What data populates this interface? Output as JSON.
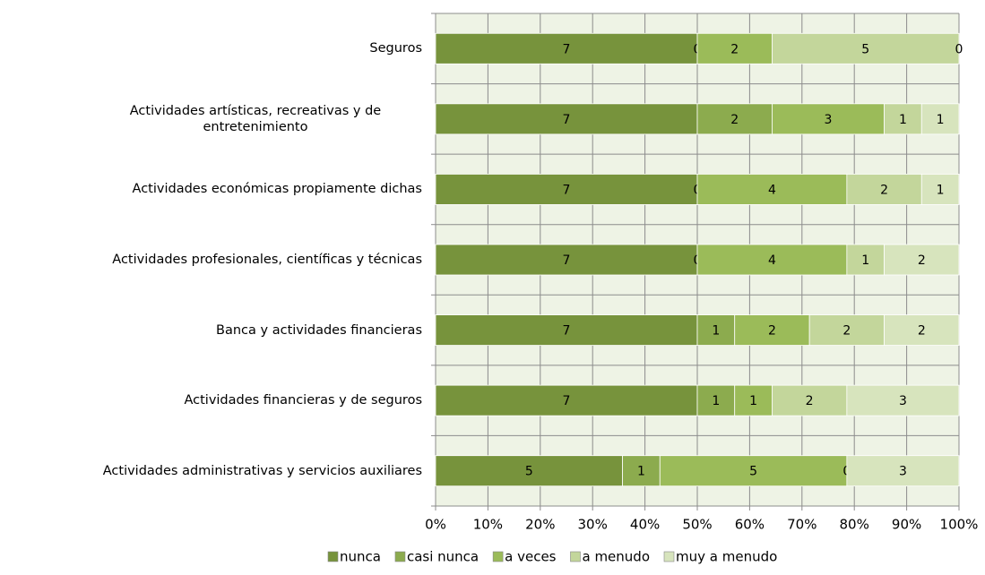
{
  "chart_data": {
    "type": "bar",
    "orientation": "horizontal",
    "stacked": "percent",
    "categories": [
      "Seguros",
      "Actividades artísticas, recreativas y de entretenimiento",
      "Actividades económicas propiamente dichas",
      "Actividades profesionales, científicas y técnicas",
      "Banca y actividades financieras",
      "Actividades financieras y de seguros",
      "Actividades administrativas y servicios auxiliares"
    ],
    "series": [
      {
        "name": "nunca",
        "color": "#77933c",
        "values": [
          7,
          7,
          7,
          7,
          7,
          7,
          5
        ]
      },
      {
        "name": "casi nunca",
        "color": "#8cab4e",
        "values": [
          0,
          2,
          0,
          0,
          1,
          1,
          1
        ]
      },
      {
        "name": "a veces",
        "color": "#9bbb59",
        "values": [
          2,
          3,
          4,
          4,
          2,
          1,
          5
        ]
      },
      {
        "name": "a menudo",
        "color": "#c3d69b",
        "values": [
          5,
          1,
          2,
          1,
          2,
          2,
          0
        ]
      },
      {
        "name": "muy a menudo",
        "color": "#d7e4bd",
        "values": [
          0,
          1,
          1,
          2,
          2,
          3,
          3
        ]
      }
    ],
    "xlim": [
      0,
      100
    ],
    "xticks": [
      {
        "value": 0,
        "label": "0%"
      },
      {
        "value": 10,
        "label": "10%"
      },
      {
        "value": 20,
        "label": "20%"
      },
      {
        "value": 30,
        "label": "30%"
      },
      {
        "value": 40,
        "label": "40%"
      },
      {
        "value": 50,
        "label": "50%"
      },
      {
        "value": 60,
        "label": "60%"
      },
      {
        "value": 70,
        "label": "70%"
      },
      {
        "value": 80,
        "label": "80%"
      },
      {
        "value": 90,
        "label": "90%"
      },
      {
        "value": 100,
        "label": "100%"
      }
    ],
    "grid": true,
    "legend": "bottom"
  }
}
